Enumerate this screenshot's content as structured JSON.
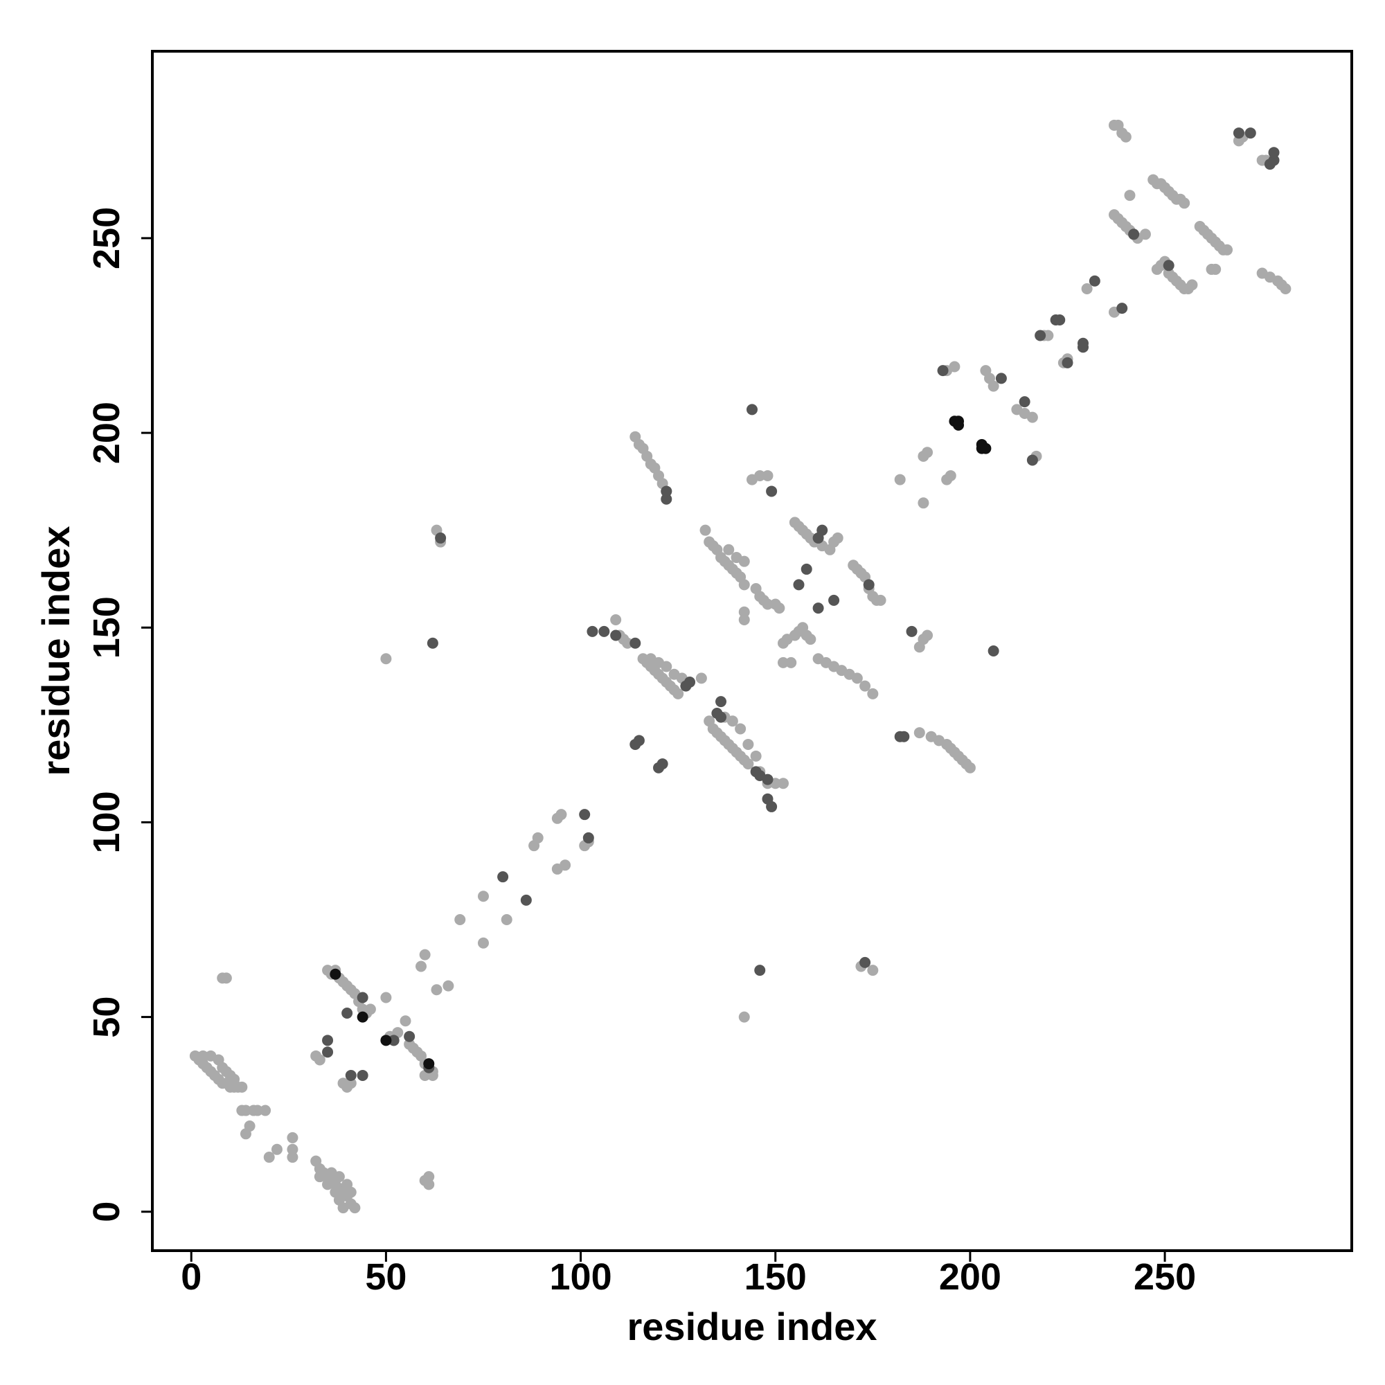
{
  "chart_data": {
    "type": "scatter",
    "x_label": "residue index",
    "y_label": "residue index",
    "xlim": [
      -10,
      298
    ],
    "ylim": [
      -10,
      298
    ],
    "xticks": [
      0,
      50,
      100,
      150,
      200,
      250
    ],
    "yticks": [
      0,
      50,
      100,
      150,
      200,
      250
    ],
    "grid": false,
    "series": [
      {
        "color": "#aaaaaa",
        "x": [
          1,
          2,
          3,
          4,
          5,
          6,
          7,
          8,
          9,
          10,
          11,
          12,
          13,
          3,
          5,
          7,
          8,
          9,
          10,
          11,
          9,
          8,
          13,
          14,
          16,
          17,
          19,
          15,
          14,
          20,
          22,
          26,
          26,
          26,
          32,
          33,
          34,
          35,
          36,
          37,
          38,
          39,
          40,
          41,
          42,
          39,
          33,
          35,
          37,
          38,
          36,
          38,
          40,
          41,
          60,
          61,
          61,
          35,
          36,
          37,
          38,
          39,
          40,
          41,
          42,
          43,
          44,
          45,
          46,
          39,
          40,
          41,
          32,
          33,
          50,
          51,
          52,
          53,
          55,
          56,
          57,
          58,
          59,
          60,
          61,
          62,
          60,
          62,
          59,
          60,
          63,
          66,
          64,
          63,
          50,
          69,
          75,
          75,
          81,
          88,
          89,
          94,
          96,
          94,
          95,
          101,
          102,
          109,
          110,
          111,
          112,
          116,
          117,
          118,
          119,
          120,
          121,
          122,
          123,
          124,
          125,
          118,
          120,
          122,
          124,
          126,
          128,
          131,
          114,
          115,
          116,
          117,
          118,
          119,
          120,
          121,
          122,
          132,
          133,
          134,
          135,
          136,
          137,
          138,
          139,
          140,
          141,
          142,
          138,
          140,
          142,
          133,
          134,
          135,
          136,
          137,
          138,
          139,
          140,
          141,
          142,
          143,
          137,
          139,
          141,
          143,
          145,
          146,
          148,
          150,
          152,
          142,
          142,
          145,
          146,
          147,
          148,
          150,
          151,
          144,
          146,
          148,
          152,
          153,
          155,
          156,
          157,
          158,
          159,
          152,
          154,
          155,
          156,
          157,
          158,
          159,
          160,
          162,
          164,
          165,
          166,
          161,
          163,
          165,
          167,
          169,
          171,
          173,
          175,
          170,
          171,
          172,
          173,
          174,
          175,
          176,
          177,
          172,
          175,
          142,
          182,
          188,
          188,
          189,
          194,
          195,
          187,
          190,
          192,
          194,
          195,
          196,
          197,
          198,
          199,
          200,
          188,
          189,
          187,
          194,
          196,
          204,
          205,
          206,
          212,
          214,
          216,
          217,
          219,
          220,
          225,
          224,
          230,
          237,
          237,
          238,
          239,
          240,
          237,
          238,
          239,
          240,
          241,
          242,
          243,
          245,
          241,
          247,
          248,
          249,
          250,
          251,
          252,
          253,
          254,
          255,
          248,
          249,
          250,
          251,
          252,
          253,
          254,
          255,
          256,
          257,
          259,
          260,
          261,
          262,
          263,
          264,
          265,
          266,
          263,
          262,
          269,
          270,
          276,
          275,
          275,
          277,
          279,
          280,
          281
        ],
        "values": [
          40,
          39,
          38,
          37,
          36,
          35,
          34,
          33,
          33,
          32,
          32,
          32,
          32,
          40,
          40,
          39,
          37,
          36,
          35,
          34,
          60,
          60,
          26,
          26,
          26,
          26,
          26,
          22,
          20,
          14,
          16,
          19,
          16,
          14,
          13,
          11,
          10,
          9,
          8,
          7,
          6,
          5,
          4,
          2,
          1,
          1,
          9,
          7,
          5,
          3,
          10,
          9,
          7,
          5,
          8,
          9,
          7,
          62,
          61,
          62,
          60,
          59,
          58,
          57,
          56,
          54,
          52,
          51,
          52,
          33,
          32,
          33,
          40,
          39,
          55,
          45,
          44,
          46,
          49,
          43,
          42,
          41,
          40,
          38,
          37,
          36,
          35,
          35,
          63,
          66,
          57,
          58,
          172,
          175,
          142,
          75,
          81,
          69,
          75,
          94,
          96,
          88,
          89,
          101,
          102,
          94,
          95,
          152,
          148,
          147,
          146,
          142,
          141,
          140,
          139,
          138,
          137,
          136,
          135,
          134,
          133,
          142,
          141,
          140,
          138,
          137,
          136,
          137,
          199,
          197,
          196,
          194,
          192,
          191,
          189,
          187,
          185,
          175,
          172,
          171,
          170,
          168,
          167,
          166,
          165,
          164,
          163,
          161,
          170,
          168,
          167,
          126,
          124,
          123,
          122,
          121,
          120,
          119,
          118,
          117,
          116,
          115,
          127,
          126,
          124,
          120,
          117,
          113,
          110,
          110,
          110,
          154,
          152,
          160,
          158,
          157,
          156,
          156,
          155,
          188,
          189,
          189,
          146,
          147,
          148,
          149,
          150,
          148,
          147,
          141,
          141,
          177,
          176,
          175,
          174,
          173,
          172,
          171,
          170,
          172,
          173,
          142,
          141,
          140,
          139,
          138,
          137,
          135,
          133,
          166,
          165,
          164,
          163,
          160,
          158,
          157,
          157,
          63,
          62,
          50,
          188,
          182,
          194,
          195,
          188,
          189,
          123,
          122,
          121,
          120,
          119,
          118,
          117,
          116,
          115,
          114,
          147,
          148,
          145,
          216,
          217,
          216,
          214,
          212,
          206,
          205,
          204,
          194,
          225,
          225,
          219,
          218,
          237,
          231,
          279,
          279,
          277,
          276,
          256,
          255,
          254,
          253,
          252,
          251,
          250,
          251,
          261,
          265,
          264,
          264,
          263,
          262,
          261,
          260,
          260,
          259,
          242,
          243,
          244,
          241,
          240,
          239,
          238,
          237,
          237,
          238,
          253,
          252,
          251,
          250,
          249,
          248,
          247,
          247,
          242,
          242,
          275,
          276,
          270,
          270,
          241,
          240,
          239,
          238,
          237
        ]
      },
      {
        "color": "#555555",
        "x": [
          35,
          35,
          40,
          41,
          44,
          44,
          52,
          56,
          61,
          64,
          62,
          80,
          86,
          102,
          101,
          103,
          106,
          109,
          114,
          114,
          115,
          120,
          121,
          122,
          122,
          127,
          128,
          135,
          136,
          136,
          145,
          146,
          148,
          148,
          149,
          144,
          149,
          146,
          158,
          156,
          161,
          165,
          162,
          161,
          173,
          174,
          185,
          182,
          183,
          206,
          193,
          208,
          214,
          216,
          222,
          223,
          229,
          229,
          218,
          225,
          232,
          239,
          242,
          251,
          269,
          272,
          277,
          278,
          278
        ],
        "values": [
          44,
          41,
          51,
          35,
          35,
          55,
          44,
          45,
          37,
          173,
          146,
          86,
          80,
          96,
          102,
          149,
          149,
          148,
          146,
          120,
          121,
          114,
          115,
          183,
          185,
          135,
          136,
          128,
          127,
          131,
          113,
          112,
          111,
          106,
          104,
          206,
          185,
          62,
          165,
          161,
          155,
          157,
          175,
          173,
          64,
          161,
          149,
          122,
          122,
          144,
          216,
          214,
          208,
          193,
          229,
          229,
          222,
          223,
          225,
          218,
          239,
          232,
          251,
          243,
          277,
          277,
          269,
          270,
          272
        ]
      },
      {
        "color": "#111111",
        "x": [
          37,
          44,
          50,
          61,
          196,
          197,
          197,
          203,
          203,
          204
        ],
        "values": [
          61,
          50,
          44,
          38,
          203,
          203,
          202,
          196,
          197,
          196
        ]
      }
    ]
  }
}
